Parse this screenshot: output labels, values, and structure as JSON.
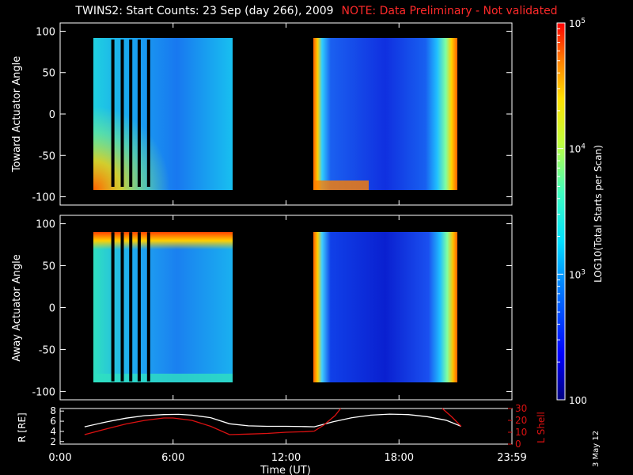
{
  "title": "TWINS2: Start Counts: 23 Sep (day 266), 2009",
  "note": "NOTE: Data Preliminary - Not validated",
  "date_stamp": "3 May 12",
  "colors": {
    "background": "#000000",
    "axes": "#ffffff",
    "note": "#ff2a2a",
    "l_shell": "#dd1111",
    "r_earth": "#ffffff"
  },
  "chart_data": [
    {
      "type": "heatmap",
      "name": "toward",
      "ylabel": "Toward Actuator Angle",
      "ylim": [
        -110,
        110
      ],
      "yticks": [
        100,
        50,
        0,
        -50,
        -100
      ],
      "ytick_labels": [
        "100",
        "50",
        "0",
        "-50",
        "-100"
      ],
      "xlim": [
        0,
        24
      ],
      "data_y_range": [
        -88,
        90
      ],
      "segments": [
        [
          1.3,
          9.0
        ],
        [
          13.5,
          21.3
        ]
      ],
      "gaps": [
        2.8,
        3.3,
        3.75,
        4.2,
        4.7
      ],
      "colorbar": {
        "label": "LOG10(Total Starts per Scan)",
        "scale": "log",
        "range": [
          100,
          100000
        ],
        "tick_labels": [
          "100",
          "10^3",
          "10^4",
          "10^5"
        ]
      }
    },
    {
      "type": "heatmap",
      "name": "away",
      "ylabel": "Away Actuator Angle",
      "ylim": [
        -110,
        110
      ],
      "yticks": [
        100,
        50,
        0,
        -50,
        -100
      ],
      "ytick_labels": [
        "100",
        "50",
        "0",
        "-50",
        "-100"
      ],
      "xlim": [
        0,
        24
      ],
      "data_y_range": [
        -88,
        90
      ],
      "segments": [
        [
          1.3,
          9.0
        ],
        [
          13.5,
          21.3
        ]
      ],
      "gaps": [
        2.8,
        3.3,
        3.75,
        4.2,
        4.7
      ]
    },
    {
      "type": "line",
      "name": "orbit",
      "xlabel": "Time (UT)",
      "xticks": [
        0,
        6,
        12,
        18,
        24
      ],
      "xtick_labels": [
        "0:00",
        "6:00",
        "12:00",
        "18:00",
        "23:59"
      ],
      "ylabel_left": "R [RE]",
      "ylabel_right": "L Shell",
      "ylim_left": [
        1.5,
        8.5
      ],
      "ylim_right": [
        0,
        30
      ],
      "yticks_left": [
        2,
        4,
        6,
        8
      ],
      "yticks_right": [
        0,
        10,
        20,
        30
      ],
      "series": [
        {
          "name": "R [RE]",
          "axis": "left",
          "x": [
            1.3,
            2.5,
            3.5,
            4.5,
            5.5,
            6.3,
            7.0,
            8.0,
            9.0,
            10.0,
            11.0,
            12.0,
            13.0,
            13.5,
            14.5,
            15.5,
            16.5,
            17.5,
            18.5,
            19.5,
            20.5,
            21.3
          ],
          "values": [
            4.9,
            5.9,
            6.6,
            7.1,
            7.3,
            7.35,
            7.2,
            6.7,
            5.5,
            5.1,
            5.0,
            5.0,
            4.95,
            4.9,
            5.9,
            6.7,
            7.2,
            7.4,
            7.3,
            6.9,
            6.2,
            5.0
          ]
        },
        {
          "name": "L Shell",
          "axis": "right",
          "x": [
            1.3,
            2.5,
            3.5,
            4.5,
            5.5,
            6.0,
            7.0,
            8.0,
            9.0,
            10.0,
            11.0,
            12.0,
            13.0,
            13.5,
            14.0,
            14.6,
            14.9
          ],
          "values": [
            8,
            13,
            17,
            20,
            22,
            22,
            20,
            15,
            8,
            8.5,
            9,
            10,
            10.5,
            11,
            16,
            24,
            30
          ]
        },
        {
          "name": "L Shell (late)",
          "axis": "right",
          "x": [
            20.3,
            20.8,
            21.3
          ],
          "values": [
            30,
            23,
            15
          ]
        }
      ]
    }
  ]
}
